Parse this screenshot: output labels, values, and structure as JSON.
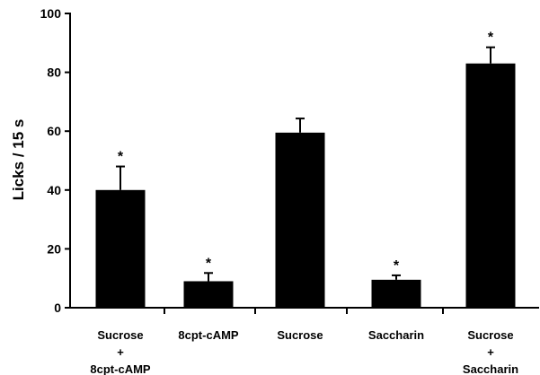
{
  "chart_data": {
    "type": "bar",
    "ylabel": "Licks / 15 s",
    "ylim": [
      0,
      100
    ],
    "yticks": [
      0,
      20,
      40,
      60,
      80,
      100
    ],
    "categories": [
      [
        "Sucrose",
        "+",
        "8cpt-cAMP"
      ],
      [
        "8cpt-cAMP"
      ],
      [
        "Sucrose"
      ],
      [
        "Saccharin"
      ],
      [
        "Sucrose",
        "+",
        "Saccharin"
      ]
    ],
    "values": [
      40,
      9,
      59.5,
      9.5,
      83
    ],
    "errors": [
      8,
      2.8,
      4.8,
      1.5,
      5.5
    ],
    "significance": [
      "*",
      "*",
      "",
      "*",
      "*"
    ],
    "bar_color": "#000000",
    "grid": false
  }
}
